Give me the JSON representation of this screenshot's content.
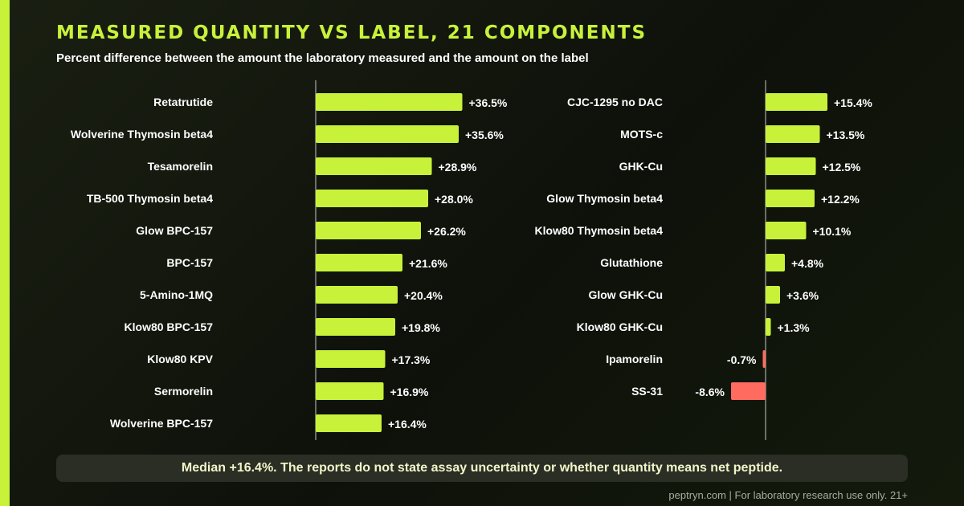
{
  "header": {
    "title": "MEASURED QUANTITY VS LABEL, 21 COMPONENTS",
    "subtitle": "Percent difference between the amount the laboratory measured and the amount on the label"
  },
  "chart_data": [
    {
      "type": "bar",
      "orientation": "horizontal",
      "categories": [
        "Retatrutide",
        "Wolverine Thymosin beta4",
        "Tesamorelin",
        "TB-500 Thymosin beta4",
        "Glow BPC-157",
        "BPC-157",
        "5-Amino-1MQ",
        "Klow80 BPC-157",
        "Klow80 KPV",
        "Sermorelin",
        "Wolverine BPC-157"
      ],
      "values": [
        36.5,
        35.6,
        28.9,
        28.0,
        26.2,
        21.6,
        20.4,
        19.8,
        17.3,
        16.9,
        16.4
      ],
      "data_labels": [
        "+36.5%",
        "+35.6%",
        "+28.9%",
        "+28.0%",
        "+26.2%",
        "+21.6%",
        "+20.4%",
        "+19.8%",
        "+17.3%",
        "+16.9%",
        "+16.4%"
      ],
      "positive_color": "#c8f23a",
      "negative_color": "#ff6b5e",
      "grid": false
    },
    {
      "type": "bar",
      "orientation": "horizontal",
      "categories": [
        "CJC-1295 no DAC",
        "MOTS-c",
        "GHK-Cu",
        "Glow Thymosin beta4",
        "Klow80 Thymosin beta4",
        "Glutathione",
        "Glow GHK-Cu",
        "Klow80 GHK-Cu",
        "Ipamorelin",
        "SS-31"
      ],
      "values": [
        15.4,
        13.5,
        12.5,
        12.2,
        10.1,
        4.8,
        3.6,
        1.3,
        -0.7,
        -8.6
      ],
      "data_labels": [
        "+15.4%",
        "+13.5%",
        "+12.5%",
        "+12.2%",
        "+10.1%",
        "+4.8%",
        "+3.6%",
        "+1.3%",
        "-0.7%",
        "-8.6%"
      ],
      "positive_color": "#c8f23a",
      "negative_color": "#ff6b5e",
      "grid": false
    }
  ],
  "note": "Median +16.4%. The reports do not state assay uncertainty or whether quantity means net peptide.",
  "footer": "peptryn.com | For laboratory research use only. 21+",
  "colors": {
    "accent": "#c8f23a",
    "negative": "#ff6b5e",
    "background": "#12160d"
  }
}
